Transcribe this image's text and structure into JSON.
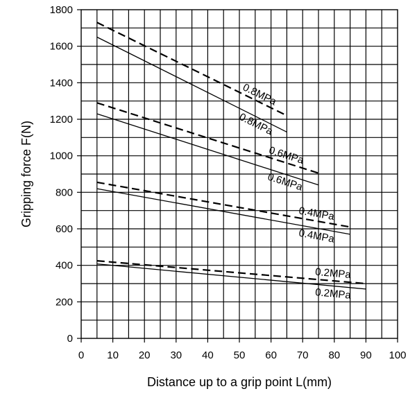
{
  "chart_data": {
    "type": "line",
    "title": "",
    "xlabel": "Distance up to a grip point L(mm)",
    "ylabel": "Gripping force F(N)",
    "xlim": [
      0,
      100
    ],
    "ylim": [
      0,
      1800
    ],
    "x_ticks": [
      "0",
      "10",
      "20",
      "30",
      "40",
      "50",
      "60",
      "70",
      "80",
      "90",
      "100"
    ],
    "y_ticks": [
      "0",
      "200",
      "400",
      "600",
      "800",
      "1000",
      "1200",
      "1400",
      "1600",
      "1800"
    ],
    "grid": true,
    "series": [
      {
        "name": "0.8MPa",
        "style": "dashed",
        "points": [
          [
            5,
            1730
          ],
          [
            65,
            1220
          ]
        ]
      },
      {
        "name": "0.8MPa",
        "style": "solid",
        "points": [
          [
            5,
            1650
          ],
          [
            65,
            1130
          ]
        ]
      },
      {
        "name": "0.6MPa",
        "style": "dashed",
        "points": [
          [
            5,
            1290
          ],
          [
            75,
            905
          ]
        ]
      },
      {
        "name": "0.6MPa",
        "style": "solid",
        "points": [
          [
            5,
            1230
          ],
          [
            75,
            840
          ]
        ]
      },
      {
        "name": "0.4MPa",
        "style": "dashed",
        "points": [
          [
            5,
            855
          ],
          [
            85,
            610
          ]
        ]
      },
      {
        "name": "0.4MPa",
        "style": "solid",
        "points": [
          [
            5,
            820
          ],
          [
            85,
            570
          ]
        ]
      },
      {
        "name": "0.2MPa",
        "style": "dashed",
        "points": [
          [
            5,
            425
          ],
          [
            90,
            300
          ]
        ]
      },
      {
        "name": "0.2MPa",
        "style": "solid",
        "points": [
          [
            5,
            408
          ],
          [
            90,
            270
          ]
        ]
      }
    ]
  }
}
